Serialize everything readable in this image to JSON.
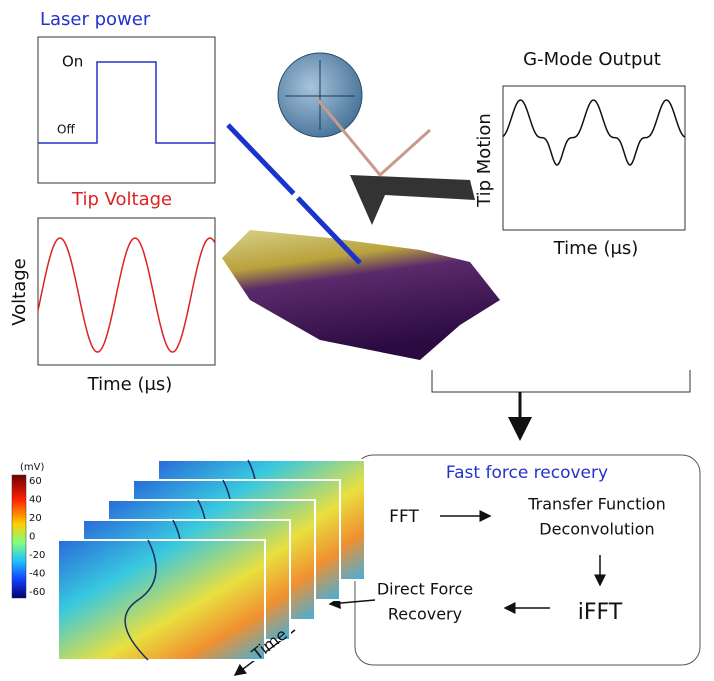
{
  "laser_panel": {
    "title": "Laser power",
    "on_label": "On",
    "off_label": "Off"
  },
  "voltage_panel": {
    "title": "Tip Voltage",
    "y_label": "Voltage",
    "x_label": "Time (μs)"
  },
  "output_panel": {
    "title": "G-Mode Output",
    "y_label": "Tip Motion",
    "x_label": "Time (μs)"
  },
  "recovery_box": {
    "title": "Fast force recovery",
    "steps": {
      "fft": "FFT",
      "transfer": [
        "Transfer Function",
        "Deconvolution"
      ],
      "ifft": "iFFT",
      "direct": [
        "Direct Force",
        "Recovery"
      ]
    }
  },
  "colorbar": {
    "unit": "(mV)",
    "ticks": [
      60,
      40,
      20,
      0,
      -20,
      -40,
      -60
    ]
  },
  "time_arrow": "Time"
}
